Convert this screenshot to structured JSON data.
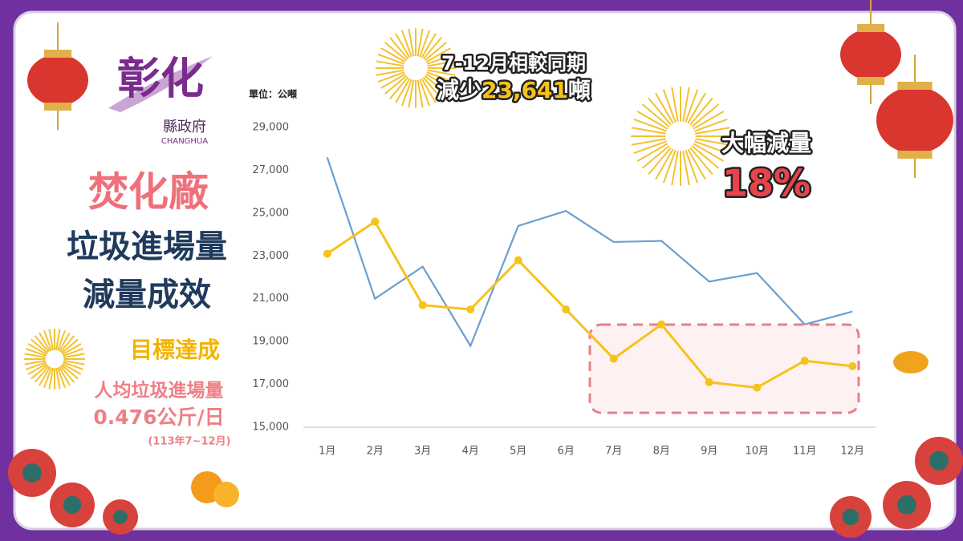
{
  "logo": {
    "name": "彰化",
    "sub": "縣政府",
    "en": "CHANGHUA"
  },
  "headline": {
    "line1": "7-12月相較同期",
    "prefix": "減少",
    "amount": "23,641",
    "unit": "噸"
  },
  "badge": {
    "label": "大幅減量",
    "value": "18%"
  },
  "side": {
    "title1": "焚化廠",
    "title2": "垃圾進場量",
    "title3": "減量成效",
    "goal": "目標達成",
    "metric": "人均垃圾進場量",
    "metric_value": "0.476公斤/日",
    "period": "(113年7~12月)"
  },
  "chart_data": {
    "type": "line",
    "unit_label": "單位：公噸",
    "categories": [
      "1月",
      "2月",
      "3月",
      "4月",
      "5月",
      "6月",
      "7月",
      "8月",
      "9月",
      "10月",
      "11月",
      "12月"
    ],
    "series": [
      {
        "color": "#6a9fcf",
        "markers": false,
        "values": [
          27600,
          21000,
          22500,
          18800,
          24400,
          25100,
          23650,
          23700,
          21800,
          22200,
          19800,
          20400
        ]
      },
      {
        "color": "#f7c21a",
        "markers": true,
        "values": [
          23100,
          24600,
          20700,
          20500,
          22800,
          20500,
          18200,
          19800,
          17100,
          16850,
          18100,
          17850
        ]
      }
    ],
    "ylim": [
      15000,
      29000
    ],
    "yticks": [
      {
        "value": 15000,
        "label": "15,000"
      },
      {
        "value": 17000,
        "label": "17,000"
      },
      {
        "value": 19000,
        "label": "19,000"
      },
      {
        "value": 21000,
        "label": "21,000"
      },
      {
        "value": 23000,
        "label": "23,000"
      },
      {
        "value": 25000,
        "label": "25,000"
      },
      {
        "value": 27000,
        "label": "27,000"
      },
      {
        "value": 29000,
        "label": "29,000"
      }
    ],
    "grid": false
  }
}
